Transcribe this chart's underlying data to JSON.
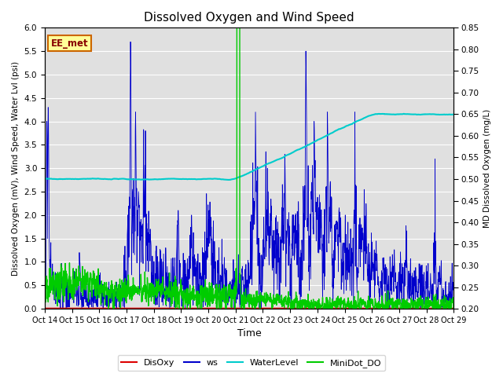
{
  "title": "Dissolved Oxygen and Wind Speed",
  "xlabel": "Time",
  "ylabel_left": "Dissolved Oxygen (mV), Wind Speed, Water Lvl (psi)",
  "ylabel_right": "MD Dissolved Oxygen (mg/L)",
  "annotation": "EE_met",
  "ylim_left": [
    0.0,
    6.0
  ],
  "ylim_right": [
    0.2,
    0.85
  ],
  "xtick_labels": [
    "Oct 14",
    "Oct 15",
    "Oct 16",
    "Oct 17",
    "Oct 18",
    "Oct 19",
    "Oct 20",
    "Oct 21",
    "Oct 22",
    "Oct 23",
    "Oct 24",
    "Oct 25",
    "Oct 26",
    "Oct 27",
    "Oct 28",
    "Oct 29"
  ],
  "yticks_left": [
    0.0,
    0.5,
    1.0,
    1.5,
    2.0,
    2.5,
    3.0,
    3.5,
    4.0,
    4.5,
    5.0,
    5.5,
    6.0
  ],
  "yticks_right": [
    0.2,
    0.25,
    0.3,
    0.35,
    0.4,
    0.45,
    0.5,
    0.55,
    0.6,
    0.65,
    0.7,
    0.75,
    0.8,
    0.85
  ],
  "colors": {
    "disoxy": "#dd0000",
    "ws": "#0000cc",
    "waterlevel": "#00cccc",
    "minidot": "#00cc00",
    "background": "#e0e0e0",
    "grid": "#ffffff",
    "annotation_box_face": "#ffff99",
    "annotation_box_edge": "#cc6600"
  },
  "legend_labels": [
    "DisOxy",
    "ws",
    "WaterLevel",
    "MiniDot_DO"
  ]
}
